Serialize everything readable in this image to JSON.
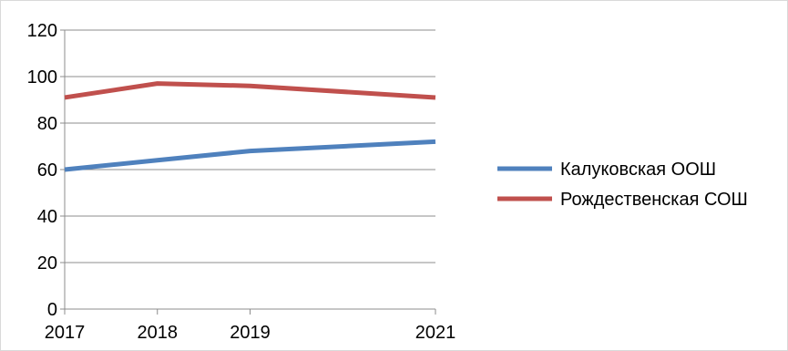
{
  "chart_data": {
    "type": "line",
    "x": [
      2017,
      2018,
      2019,
      2021
    ],
    "ylim": [
      0,
      120
    ],
    "yticks": [
      0,
      20,
      40,
      60,
      80,
      100,
      120
    ],
    "grid": true,
    "legend_position": "right",
    "series": [
      {
        "name": "Калуковская ООШ",
        "color": "#4f81bd",
        "values": [
          60,
          64,
          68,
          72
        ]
      },
      {
        "name": "Рождественская СОШ",
        "color": "#c0504d",
        "values": [
          91,
          97,
          96,
          91
        ]
      }
    ]
  }
}
